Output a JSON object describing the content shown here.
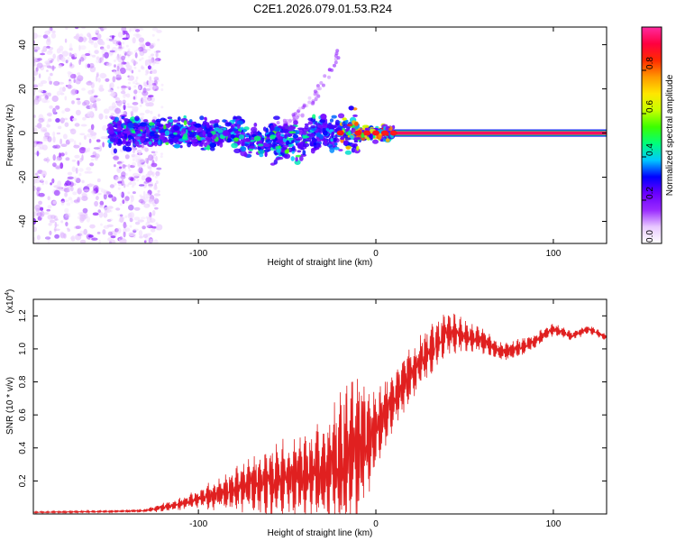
{
  "title": "C2E1.2026.079.01.53.R24",
  "chart_data": [
    {
      "type": "heatmap",
      "title": "C2E1.2026.079.01.53.R24",
      "xlabel": "Height of straight line (km)",
      "ylabel": "Frequency (Hz)",
      "xlim": [
        -193,
        130
      ],
      "ylim": [
        -50,
        48
      ],
      "xticks": [
        -100,
        0,
        100
      ],
      "xtick_labels": [
        "-100",
        "0",
        "100"
      ],
      "yticks": [
        -40,
        -20,
        0,
        20,
        40
      ],
      "ytick_labels": [
        "-40",
        "-20",
        "0",
        "20",
        "40"
      ],
      "colorbar": {
        "label": "Normalized spectral amplitude",
        "range": [
          0,
          1
        ],
        "ticks": [
          0.0,
          0.2,
          0.4,
          0.6,
          0.8
        ],
        "tick_labels": [
          "0.0",
          "0.2",
          "0.4",
          "0.6",
          "0.8"
        ],
        "colors": [
          "#ffffff",
          "#e8c8ff",
          "#9a2bff",
          "#6a00ff",
          "#0000ff",
          "#00c8ff",
          "#00ff7a",
          "#3cff00",
          "#c8ff00",
          "#ffe600",
          "#ff9900",
          "#ff2a00",
          "#ff0040",
          "#ff2aa0"
        ]
      },
      "features": [
        {
          "name": "noise region",
          "x_range": [
            -193,
            -122
          ],
          "y_range": [
            -50,
            48
          ],
          "amplitude": 0.15
        },
        {
          "name": "scattered echoes",
          "x_range": [
            -150,
            10
          ],
          "y_center": 0,
          "amplitude_range": [
            0.2,
            0.6
          ]
        },
        {
          "name": "rising streak",
          "x_range": [
            -60,
            -20
          ],
          "y_range": [
            2,
            38
          ],
          "amplitude": 0.15
        },
        {
          "name": "steady carrier line",
          "x_range": [
            10,
            130
          ],
          "y": 0,
          "amplitude": 0.95
        }
      ]
    },
    {
      "type": "line",
      "xlabel": "Height of straight line (km)",
      "ylabel": "SNR (10 * v/v)",
      "y_scale_label": "(x10",
      "y_scale_exponent": "4",
      "xlim": [
        -193,
        130
      ],
      "ylim": [
        0,
        1.3
      ],
      "xticks": [
        -100,
        0,
        100
      ],
      "xtick_labels": [
        "-100",
        "0",
        "100"
      ],
      "yticks": [
        0.2,
        0.4,
        0.6,
        0.8,
        1.0,
        1.2
      ],
      "ytick_labels": [
        "0.2",
        "0.4",
        "0.6",
        "0.8",
        "1.0",
        "1.2"
      ],
      "color": "#e02020",
      "series": [
        {
          "name": "SNR",
          "x": [
            -193,
            -150,
            -130,
            -120,
            -110,
            -100,
            -90,
            -80,
            -70,
            -60,
            -50,
            -40,
            -30,
            -20,
            -15,
            -10,
            -5,
            0,
            10,
            20,
            30,
            40,
            50,
            60,
            70,
            80,
            90,
            100,
            110,
            120,
            130
          ],
          "mean": [
            0.01,
            0.015,
            0.02,
            0.04,
            0.06,
            0.09,
            0.12,
            0.15,
            0.18,
            0.2,
            0.22,
            0.24,
            0.26,
            0.3,
            0.35,
            0.4,
            0.45,
            0.5,
            0.7,
            0.85,
            0.98,
            1.1,
            1.08,
            1.05,
            0.98,
            1.0,
            1.05,
            1.12,
            1.08,
            1.12,
            1.07
          ],
          "amp": [
            0.005,
            0.008,
            0.01,
            0.03,
            0.04,
            0.06,
            0.1,
            0.14,
            0.18,
            0.22,
            0.25,
            0.28,
            0.32,
            0.45,
            0.55,
            0.55,
            0.4,
            0.25,
            0.2,
            0.18,
            0.16,
            0.15,
            0.1,
            0.08,
            0.06,
            0.06,
            0.05,
            0.04,
            0.03,
            0.03,
            0.02
          ]
        }
      ]
    }
  ]
}
